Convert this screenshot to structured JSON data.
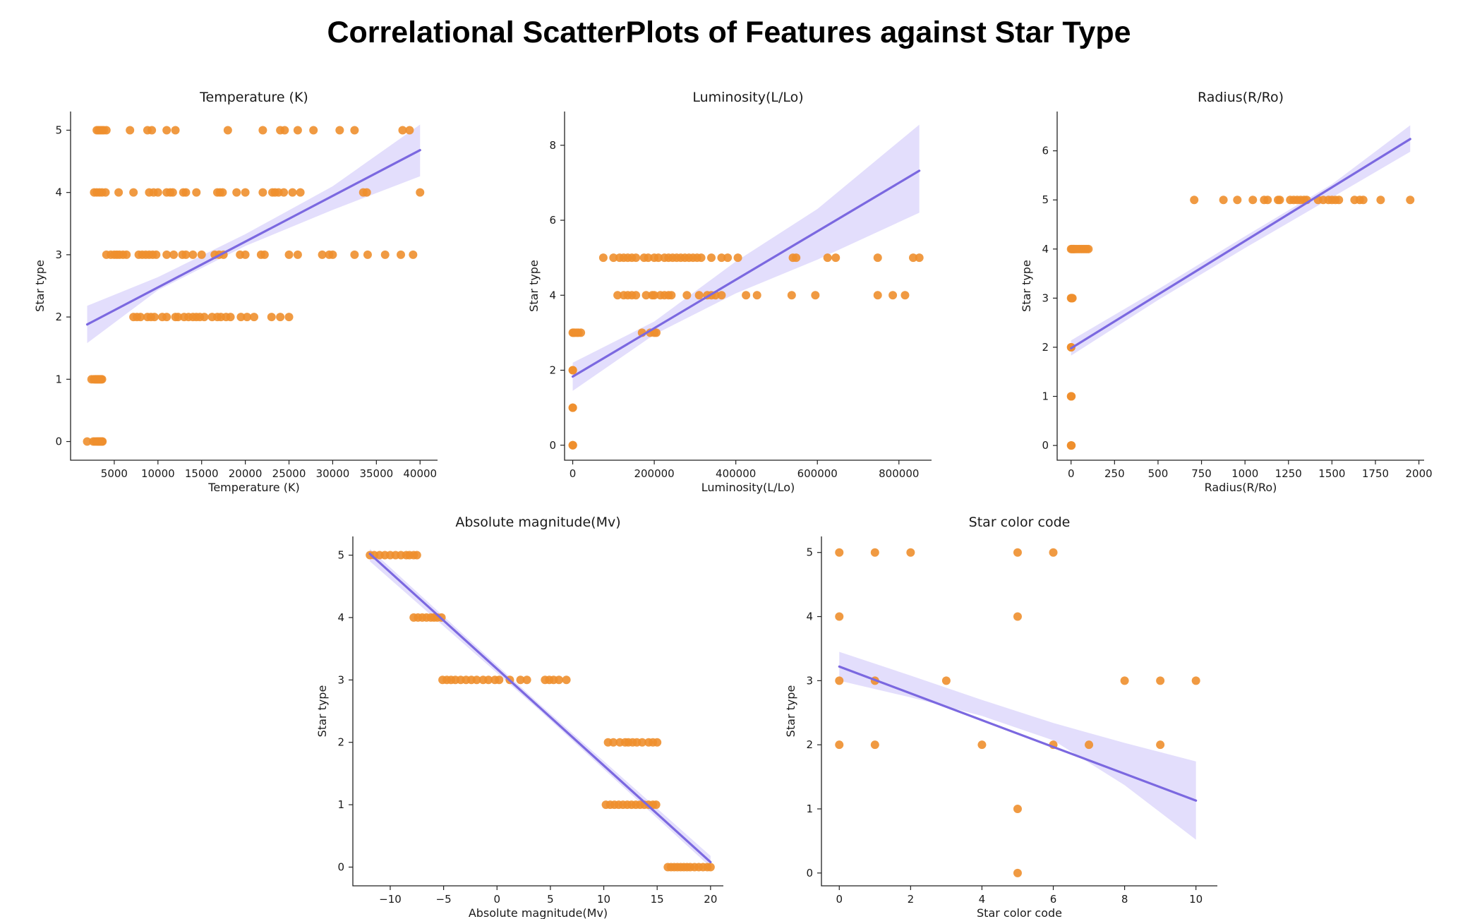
{
  "title": "Correlational ScatterPlots of Features against Star Type",
  "colors": {
    "points": "#ee8f2e",
    "fit_line": "#7b68e0",
    "ci_band": "#dcd6fb"
  },
  "chart_data": [
    {
      "type": "scatter",
      "title": "Temperature (K)",
      "xlabel": "Temperature (K)",
      "ylabel": "Star type",
      "xlim": [
        0,
        42000
      ],
      "ylim": [
        -0.3,
        5.3
      ],
      "xticks": [
        5000,
        10000,
        15000,
        20000,
        25000,
        30000,
        35000,
        40000
      ],
      "yticks": [
        0,
        1,
        2,
        3,
        4,
        5
      ],
      "points": [
        {
          "y": 0,
          "x": [
            1900,
            2600,
            2800,
            3000,
            3100,
            3200,
            3300,
            3400,
            3500,
            3600,
            3650
          ]
        },
        {
          "y": 1,
          "x": [
            2400,
            2650,
            2800,
            2900,
            3000,
            3100,
            3200,
            3300,
            3400,
            3500,
            3600
          ]
        },
        {
          "y": 2,
          "x": [
            7200,
            7600,
            8000,
            8800,
            9200,
            9600,
            10500,
            11000,
            12000,
            12300,
            13000,
            13500,
            14000,
            14400,
            14800,
            15300,
            16200,
            16800,
            17200,
            17800,
            18300,
            19500,
            20200,
            21000,
            23000,
            24000,
            25000
          ]
        },
        {
          "y": 3,
          "x": [
            4100,
            4600,
            5000,
            5300,
            5600,
            6000,
            6400,
            7800,
            8200,
            8600,
            9000,
            9400,
            9800,
            11000,
            11800,
            12800,
            13200,
            14000,
            15000,
            16500,
            17000,
            17500,
            19400,
            20000,
            21800,
            22200,
            25000,
            26000,
            28800,
            29600,
            30000,
            32500,
            34000,
            36000,
            37800,
            39200
          ]
        },
        {
          "y": 4,
          "x": [
            2700,
            3000,
            3300,
            3600,
            4000,
            5500,
            7200,
            9000,
            9500,
            10000,
            11000,
            11400,
            11700,
            12900,
            13200,
            14400,
            16800,
            17100,
            17400,
            19000,
            20000,
            22000,
            23100,
            23400,
            23800,
            24400,
            25400,
            26300,
            33500,
            33900,
            40000
          ]
        },
        {
          "y": 5,
          "x": [
            3000,
            3200,
            3400,
            3600,
            3800,
            4100,
            6800,
            8800,
            9300,
            11000,
            12000,
            18000,
            22000,
            24000,
            24500,
            26000,
            27800,
            30800,
            32500,
            38000,
            38800
          ]
        }
      ],
      "fit": {
        "x": [
          1900,
          40000
        ],
        "y": [
          1.88,
          4.68
        ]
      },
      "ci": {
        "x": [
          1900,
          10000,
          20000,
          30000,
          40000
        ],
        "lower": [
          1.58,
          2.43,
          3.14,
          3.72,
          4.26
        ],
        "upper": [
          2.18,
          2.64,
          3.33,
          4.1,
          5.09
        ]
      }
    },
    {
      "type": "scatter",
      "title": "Luminosity(L/Lo)",
      "xlabel": "Luminosity(L/Lo)",
      "ylabel": "Star type",
      "xlim": [
        -20000,
        880000
      ],
      "ylim": [
        -0.4,
        8.9
      ],
      "xticks": [
        0,
        200000,
        400000,
        600000,
        800000
      ],
      "yticks": [
        0,
        2,
        4,
        6,
        8
      ],
      "points": [
        {
          "y": 0,
          "x": [
            0,
            200,
            400
          ]
        },
        {
          "y": 1,
          "x": [
            0,
            200
          ]
        },
        {
          "y": 2,
          "x": [
            0,
            300
          ]
        },
        {
          "y": 3,
          "x": [
            0,
            2000,
            5000,
            10000,
            14000,
            20000,
            170000,
            190000,
            200000,
            205000
          ]
        },
        {
          "y": 4,
          "x": [
            110000,
            125000,
            135000,
            145000,
            155000,
            180000,
            195000,
            200000,
            215000,
            225000,
            235000,
            242000,
            280000,
            310000,
            330000,
            340000,
            350000,
            365000,
            425000,
            452000,
            537000,
            595000,
            748000,
            785000,
            815000
          ]
        },
        {
          "y": 5,
          "x": [
            75000,
            100000,
            115000,
            125000,
            135000,
            145000,
            155000,
            175000,
            185000,
            200000,
            210000,
            225000,
            235000,
            245000,
            255000,
            265000,
            275000,
            285000,
            295000,
            305000,
            315000,
            340000,
            365000,
            380000,
            405000,
            540000,
            548000,
            625000,
            645000,
            748000,
            835000,
            850000
          ]
        }
      ],
      "fit": {
        "x": [
          0,
          850000
        ],
        "y": [
          1.83,
          7.32
        ]
      },
      "ci": {
        "x": [
          0,
          200000,
          400000,
          600000,
          850000
        ],
        "lower": [
          1.45,
          2.95,
          4.05,
          4.95,
          6.2
        ],
        "upper": [
          2.2,
          3.3,
          4.9,
          6.3,
          8.55
        ]
      }
    },
    {
      "type": "scatter",
      "title": "Radius(R/Ro)",
      "xlabel": "Radius(R/Ro)",
      "ylabel": "Star type",
      "xlim": [
        -80,
        2030
      ],
      "ylim": [
        -0.3,
        6.8
      ],
      "xticks": [
        0,
        250,
        500,
        750,
        1000,
        1250,
        1500,
        1750,
        2000
      ],
      "yticks": [
        0,
        1,
        2,
        3,
        4,
        5,
        6
      ],
      "points": [
        {
          "y": 0,
          "x": [
            0,
            1,
            2
          ]
        },
        {
          "y": 1,
          "x": [
            0,
            1,
            2
          ]
        },
        {
          "y": 2,
          "x": [
            0,
            1
          ]
        },
        {
          "y": 3,
          "x": [
            0,
            2,
            5,
            8
          ]
        },
        {
          "y": 4,
          "x": [
            0,
            5,
            10,
            15,
            20,
            30,
            40,
            50,
            60,
            70,
            80,
            90,
            100
          ]
        },
        {
          "y": 5,
          "x": [
            708,
            876,
            956,
            1045,
            1110,
            1130,
            1190,
            1200,
            1260,
            1280,
            1300,
            1320,
            1340,
            1355,
            1420,
            1450,
            1480,
            1500,
            1520,
            1540,
            1630,
            1660,
            1680,
            1780,
            1950
          ]
        }
      ],
      "fit": {
        "x": [
          0,
          1950
        ],
        "y": [
          1.98,
          6.24
        ]
      },
      "ci": {
        "x": [
          0,
          500,
          1000,
          1500,
          1950
        ],
        "lower": [
          1.83,
          2.96,
          4.02,
          5.05,
          5.98
        ],
        "upper": [
          2.14,
          3.18,
          4.26,
          5.32,
          6.52
        ]
      }
    },
    {
      "type": "scatter",
      "title": "Absolute magnitude(Mv)",
      "xlabel": "Absolute magnitude(Mv)",
      "ylabel": "Star type",
      "xlim": [
        -13.5,
        21.2
      ],
      "ylim": [
        -0.3,
        5.3
      ],
      "xticks": [
        -10,
        -5,
        0,
        5,
        10,
        15,
        20
      ],
      "yticks": [
        0,
        1,
        2,
        3,
        4,
        5
      ],
      "points": [
        {
          "y": 0,
          "x": [
            16.0,
            16.3,
            16.6,
            16.9,
            17.2,
            17.5,
            17.8,
            18.1,
            18.5,
            18.9,
            19.3,
            19.7,
            20.0
          ]
        },
        {
          "y": 1,
          "x": [
            10.2,
            10.6,
            11.0,
            11.4,
            11.8,
            12.2,
            12.6,
            13.0,
            13.4,
            13.8,
            14.2,
            14.6,
            14.9
          ]
        },
        {
          "y": 2,
          "x": [
            10.4,
            10.9,
            11.5,
            12.0,
            12.3,
            12.7,
            13.1,
            13.6,
            14.2,
            14.6,
            15.0
          ]
        },
        {
          "y": 3,
          "x": [
            -5.1,
            -4.7,
            -4.3,
            -3.9,
            -3.4,
            -2.9,
            -2.4,
            -1.9,
            -1.3,
            -0.8,
            -0.2,
            0.2,
            1.2,
            2.2,
            2.8,
            4.5,
            4.9,
            5.3,
            5.8,
            6.5
          ]
        },
        {
          "y": 4,
          "x": [
            -7.8,
            -7.4,
            -7.0,
            -6.6,
            -6.2,
            -5.9,
            -5.6,
            -5.2
          ]
        },
        {
          "y": 5,
          "x": [
            -11.9,
            -11.5,
            -11.0,
            -10.5,
            -10.0,
            -9.5,
            -9.0,
            -8.5,
            -8.2,
            -7.8,
            -7.5
          ]
        }
      ],
      "fit": {
        "x": [
          -11.9,
          20.0
        ],
        "y": [
          5.02,
          0.08
        ]
      },
      "ci": {
        "x": [
          -11.9,
          4,
          20.0
        ],
        "lower": [
          4.9,
          2.51,
          0.0
        ],
        "upper": [
          5.1,
          2.61,
          0.18
        ]
      }
    },
    {
      "type": "scatter",
      "title": "Star color code",
      "xlabel": "Star color code",
      "ylabel": "Star type",
      "xlim": [
        -0.5,
        10.6
      ],
      "ylim": [
        -0.2,
        5.25
      ],
      "xticks": [
        0,
        2,
        4,
        6,
        8,
        10
      ],
      "yticks": [
        0,
        1,
        2,
        3,
        4,
        5
      ],
      "points": [
        {
          "y": 0,
          "x": [
            5
          ]
        },
        {
          "y": 1,
          "x": [
            5
          ]
        },
        {
          "y": 2,
          "x": [
            0,
            1,
            4,
            6,
            7,
            9
          ]
        },
        {
          "y": 3,
          "x": [
            0,
            1,
            3,
            8,
            9,
            10
          ]
        },
        {
          "y": 4,
          "x": [
            0,
            5
          ]
        },
        {
          "y": 5,
          "x": [
            0,
            1,
            2,
            5,
            6
          ]
        }
      ],
      "fit": {
        "x": [
          0,
          10
        ],
        "y": [
          3.22,
          1.13
        ]
      },
      "ci": {
        "x": [
          0,
          2,
          4,
          6,
          8,
          10
        ],
        "lower": [
          3.0,
          2.74,
          2.45,
          2.07,
          1.37,
          0.52
        ],
        "upper": [
          3.45,
          3.08,
          2.7,
          2.34,
          2.03,
          1.74
        ]
      }
    }
  ]
}
